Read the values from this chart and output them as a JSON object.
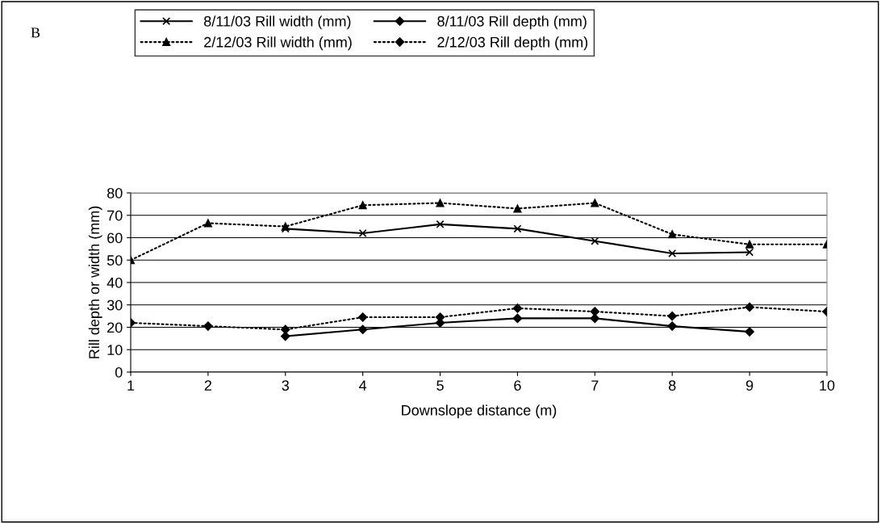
{
  "chart_data": {
    "type": "line",
    "annotations": [
      "B"
    ],
    "xlabel": "Downslope distance (m)",
    "ylabel": "Rill depth or width (mm)",
    "x": [
      1,
      2,
      3,
      4,
      5,
      6,
      7,
      8,
      9,
      10
    ],
    "series": [
      {
        "name": "8/11/03 Rill width (mm)",
        "color": "#000000",
        "marker": "cross",
        "line_style": "solid",
        "values": [
          null,
          null,
          64,
          62,
          66,
          64,
          58.5,
          53,
          53.5,
          null
        ]
      },
      {
        "name": "8/11/03 Rill depth (mm)",
        "color": "#000000",
        "marker": "diamond",
        "line_style": "solid",
        "values": [
          null,
          null,
          16,
          19,
          22,
          24,
          24,
          20.5,
          18,
          null
        ]
      },
      {
        "name": "2/12/03 Rill width (mm)",
        "color": "#000000",
        "marker": "triangle",
        "line_style": "dotted",
        "values": [
          50,
          66.5,
          65,
          74.5,
          75.5,
          73,
          75.5,
          61.5,
          57,
          57
        ]
      },
      {
        "name": "2/12/03 Rill depth (mm)",
        "color": "#000000",
        "marker": "diamond",
        "line_style": "dotted",
        "values": [
          22,
          20.5,
          19,
          24.5,
          24.5,
          28.5,
          27,
          25,
          29,
          27
        ]
      }
    ],
    "xlim": [
      1,
      10
    ],
    "xticks": [
      1,
      2,
      3,
      4,
      5,
      6,
      7,
      8,
      9,
      10
    ],
    "ylim": [
      0,
      80
    ],
    "yticks": [
      0,
      10,
      20,
      30,
      40,
      50,
      60,
      70,
      80
    ],
    "grid": "y",
    "legend": "top"
  }
}
